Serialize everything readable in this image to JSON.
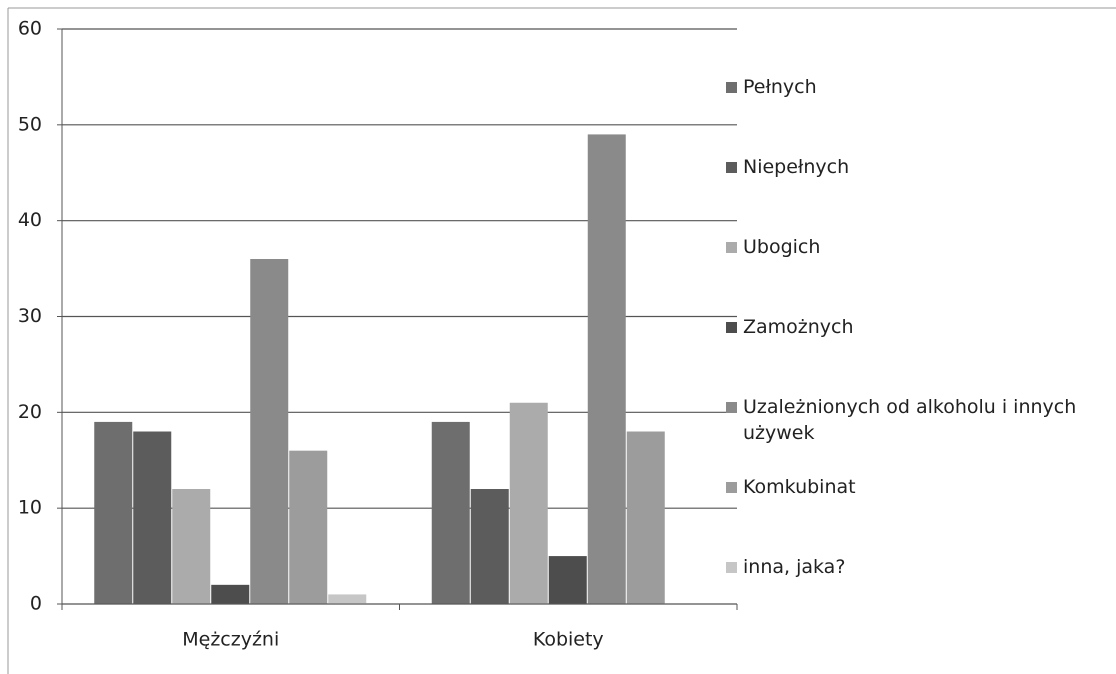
{
  "chart_data": {
    "type": "bar",
    "categories": [
      "Mężczyźni",
      "Kobiety"
    ],
    "series": [
      {
        "name": "Pełnych",
        "color": "#6e6e6e",
        "values": [
          19,
          19
        ]
      },
      {
        "name": "Niepełnych",
        "color": "#5c5c5c",
        "values": [
          18,
          12
        ]
      },
      {
        "name": "Ubogich",
        "color": "#ababab",
        "values": [
          12,
          21
        ]
      },
      {
        "name": "Zamożnych",
        "color": "#4d4d4d",
        "values": [
          2,
          5
        ]
      },
      {
        "name": "Uzależnionych od alkoholu i innych używek",
        "color": "#8a8a8a",
        "values": [
          36,
          49
        ]
      },
      {
        "name": "Komkubinat",
        "color": "#9c9c9c",
        "values": [
          16,
          18
        ]
      },
      {
        "name": "inna, jaka?",
        "color": "#c6c6c6",
        "values": [
          1,
          0
        ]
      }
    ],
    "ylim": [
      0,
      60
    ],
    "yticks": [
      0,
      10,
      20,
      30,
      40,
      50,
      60
    ],
    "grid": true,
    "legend": "right"
  }
}
